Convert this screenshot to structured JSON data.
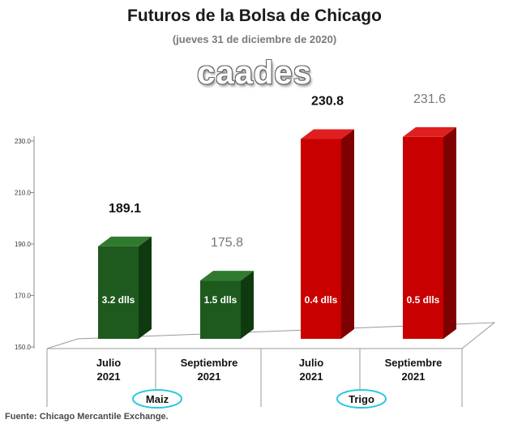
{
  "title": "Futuros de la Bolsa de Chicago",
  "subtitle": "(jueves 31 de diciembre de 2020)",
  "logo_text": "caades",
  "source": "Fuente: Chicago Mercantile Exchange.",
  "colors": {
    "maiz_front": "#1e5a1e",
    "maiz_side": "#0f3a0f",
    "maiz_top": "#2f7a2f",
    "trigo_front": "#c80000",
    "trigo_side": "#7e0000",
    "trigo_top": "#e02020",
    "group_oval": "#28c8e0"
  },
  "chart_data": {
    "type": "bar",
    "categories": [
      "Julio 2021",
      "Septiembre 2021",
      "Julio 2021",
      "Septiembre 2021"
    ],
    "category_lines": [
      [
        "Julio",
        "2021"
      ],
      [
        "Septiembre",
        "2021"
      ],
      [
        "Julio",
        "2021"
      ],
      [
        "Septiembre",
        "2021"
      ]
    ],
    "values": [
      189.1,
      175.8,
      230.8,
      231.6
    ],
    "value_labels": [
      "189.1",
      "175.8",
      "230.8",
      "231.6"
    ],
    "value_label_bold": [
      true,
      false,
      true,
      false
    ],
    "inner_labels": [
      "3.2 dlls",
      "1.5 dlls",
      "0.4 dlls",
      "0.5 dlls"
    ],
    "bar_groups": [
      "maiz",
      "maiz",
      "trigo",
      "trigo"
    ],
    "groups": [
      {
        "key": "maiz",
        "label": "Maiz"
      },
      {
        "key": "trigo",
        "label": "Trigo"
      }
    ],
    "ylim": [
      150,
      230
    ],
    "y_ticks": [
      "150.0",
      "170.0",
      "190.0",
      "210.0",
      "230.0"
    ],
    "y_tick_values": [
      150,
      170,
      190,
      210,
      230
    ],
    "grid": false,
    "legend": "none"
  }
}
